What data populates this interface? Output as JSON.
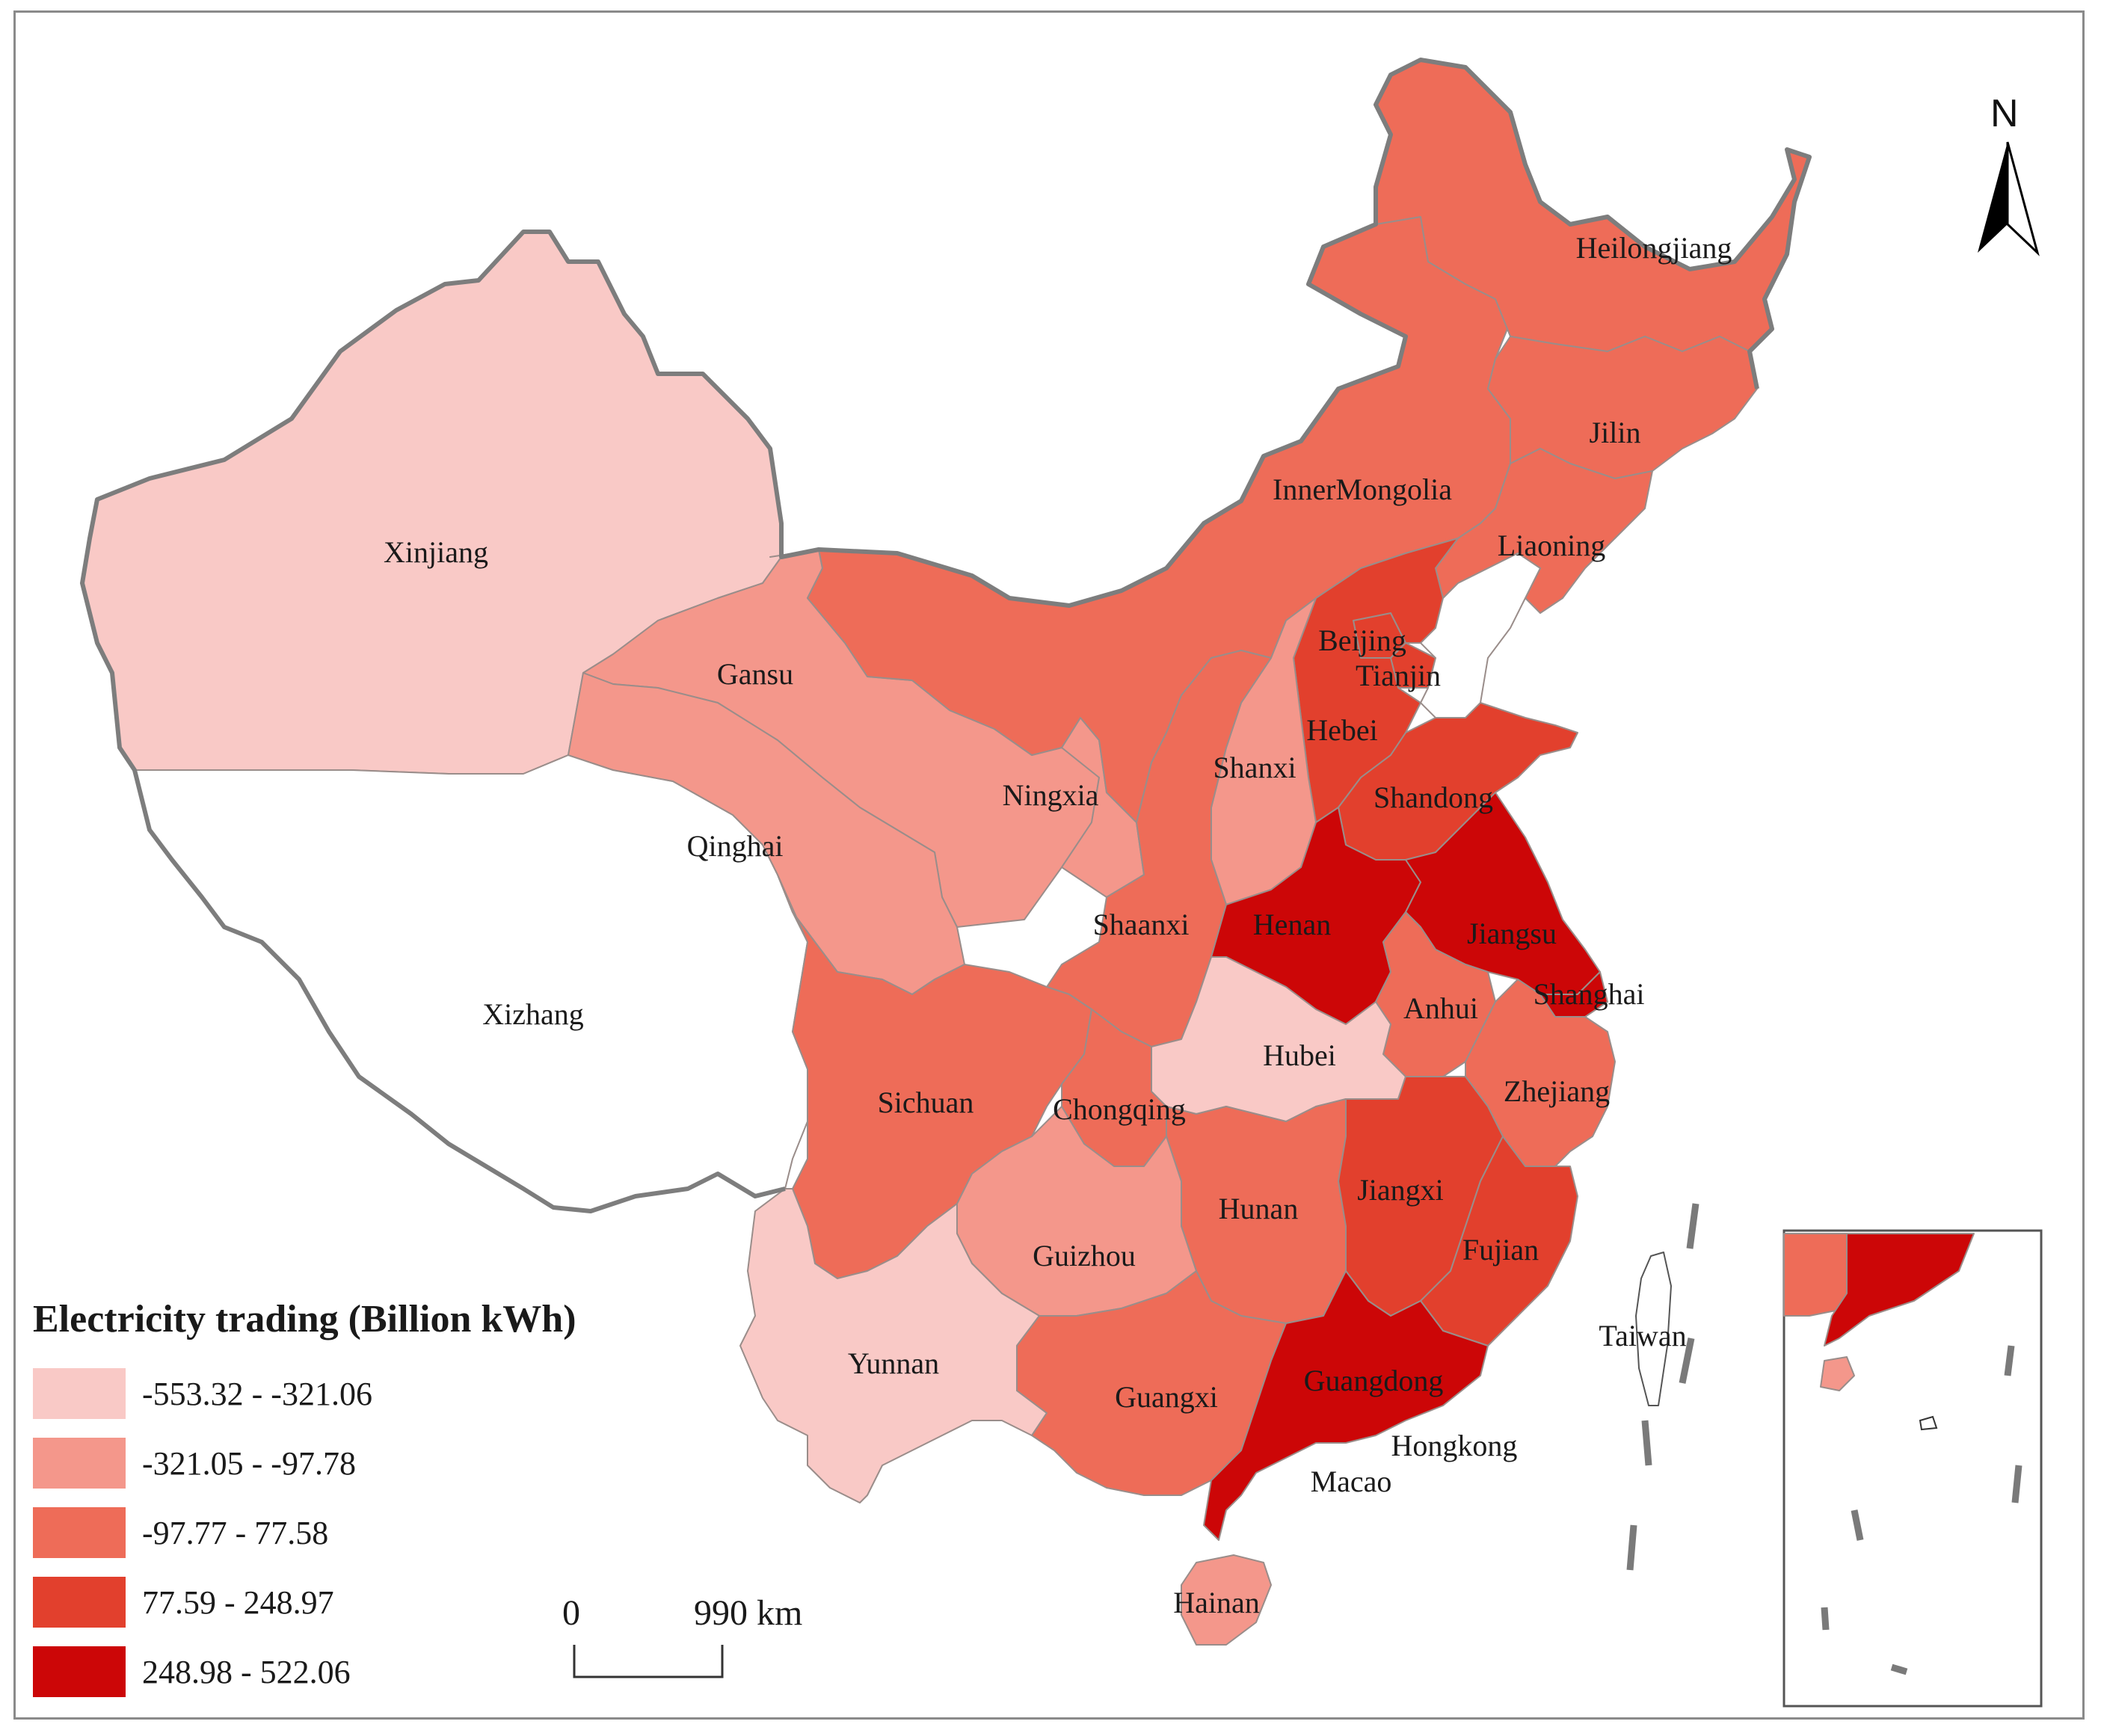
{
  "legend": {
    "title": "Electricity trading (Billion kWh)",
    "classes": [
      {
        "label": "-553.32 - -321.06",
        "color": "#f9c9c6"
      },
      {
        "label": "-321.05 - -97.78",
        "color": "#f4978b"
      },
      {
        "label": "-97.77 - 77.58",
        "color": "#ee6c58"
      },
      {
        "label": "77.59 - 248.97",
        "color": "#e2402d"
      },
      {
        "label": "248.98 - 522.06",
        "color": "#cc0607"
      }
    ]
  },
  "scale_bar": {
    "start": "0",
    "end": "990 km"
  },
  "north_arrow": {
    "label": "N",
    "icon": "north-arrow-icon"
  },
  "no_data_color": "#ffffff",
  "regions": [
    {
      "name": "Xinjiang",
      "class": 0
    },
    {
      "name": "Xizhang",
      "class": -1
    },
    {
      "name": "Gansu",
      "class": 1
    },
    {
      "name": "Qinghai",
      "class": 1
    },
    {
      "name": "Ningxia",
      "class": 1
    },
    {
      "name": "InnerMongolia",
      "class": 2
    },
    {
      "name": "Heilongjiang",
      "class": 2
    },
    {
      "name": "Jilin",
      "class": 2
    },
    {
      "name": "Liaoning",
      "class": 2
    },
    {
      "name": "Beijing",
      "class": 3
    },
    {
      "name": "Tianjin",
      "class": 3
    },
    {
      "name": "Hebei",
      "class": 3
    },
    {
      "name": "Shanxi",
      "class": 1
    },
    {
      "name": "Shandong",
      "class": 3
    },
    {
      "name": "Shaanxi",
      "class": 2
    },
    {
      "name": "Henan",
      "class": 4
    },
    {
      "name": "Jiangsu",
      "class": 4
    },
    {
      "name": "Shanghai",
      "class": 4
    },
    {
      "name": "Anhui",
      "class": 2
    },
    {
      "name": "Hubei",
      "class": 0
    },
    {
      "name": "Sichuan",
      "class": 2
    },
    {
      "name": "Chongqing",
      "class": 2
    },
    {
      "name": "Zhejiang",
      "class": 2
    },
    {
      "name": "Hunan",
      "class": 2
    },
    {
      "name": "Jiangxi",
      "class": 3
    },
    {
      "name": "Fujian",
      "class": 3
    },
    {
      "name": "Guizhou",
      "class": 1
    },
    {
      "name": "Yunnan",
      "class": 0
    },
    {
      "name": "Guangxi",
      "class": 2
    },
    {
      "name": "Guangdong",
      "class": 4
    },
    {
      "name": "Hainan",
      "class": 1
    },
    {
      "name": "Taiwan",
      "class": -1
    },
    {
      "name": "Hongkong",
      "class": -1
    },
    {
      "name": "Macao",
      "class": -1
    }
  ]
}
